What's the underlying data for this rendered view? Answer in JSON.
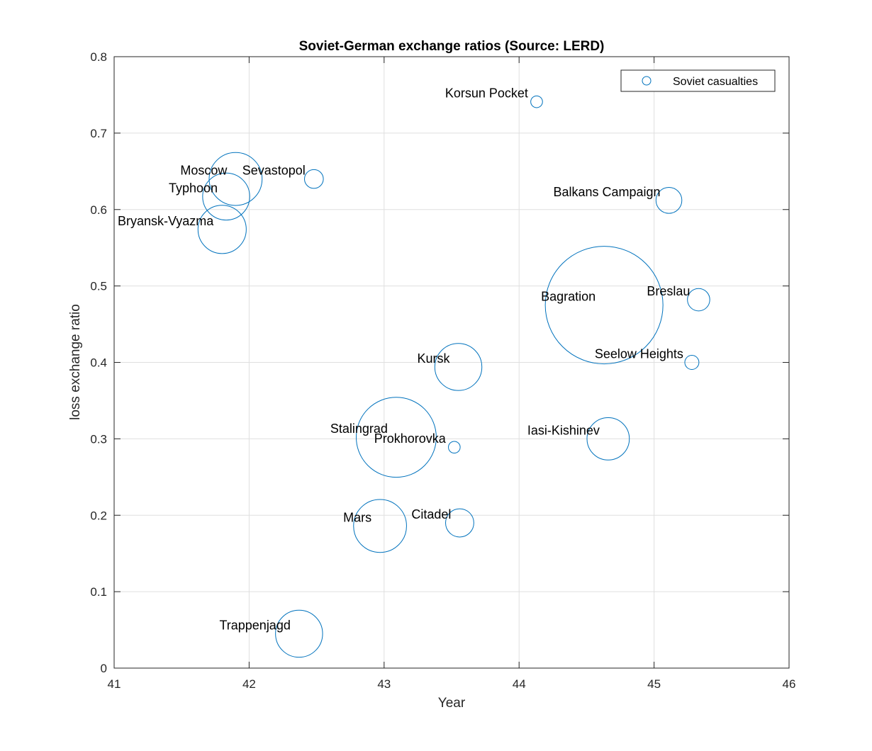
{
  "chart_data": {
    "type": "scatter",
    "title": "Soviet-German exchange ratios (Source: LERD)",
    "xlabel": "Year",
    "ylabel": "loss exchange ratio",
    "xlim": [
      41,
      46
    ],
    "ylim": [
      0,
      0.8
    ],
    "xticks": [
      41,
      42,
      43,
      44,
      45,
      46
    ],
    "yticks": [
      0,
      0.1,
      0.2,
      0.3,
      0.4,
      0.5,
      0.6,
      0.7,
      0.8
    ],
    "xtick_labels": [
      "41",
      "42",
      "43",
      "44",
      "45",
      "46"
    ],
    "ytick_labels": [
      "0",
      "0.1",
      "0.2",
      "0.3",
      "0.4",
      "0.5",
      "0.6",
      "0.7",
      "0.8"
    ],
    "grid": true,
    "legend": {
      "position": "top-right",
      "entries": [
        "Soviet casualties"
      ]
    },
    "marker_color": "#0072BD",
    "series": [
      {
        "name": "Soviet casualties",
        "points": [
          {
            "label": "Korsun Pocket",
            "x": 44.13,
            "y": 0.741,
            "size_rel": 0.1
          },
          {
            "label": "Moscow",
            "x": 41.9,
            "y": 0.64,
            "size_rel": 0.45
          },
          {
            "label": "Sevastopol",
            "x": 42.48,
            "y": 0.64,
            "size_rel": 0.16
          },
          {
            "label": "Typhoon",
            "x": 41.83,
            "y": 0.617,
            "size_rel": 0.4
          },
          {
            "label": "Bryansk-Vyazma",
            "x": 41.8,
            "y": 0.574,
            "size_rel": 0.41
          },
          {
            "label": "Balkans Campaign",
            "x": 45.11,
            "y": 0.612,
            "size_rel": 0.22
          },
          {
            "label": "Bagration",
            "x": 44.63,
            "y": 0.475,
            "size_rel": 1.0
          },
          {
            "label": "Breslau",
            "x": 45.33,
            "y": 0.482,
            "size_rel": 0.19
          },
          {
            "label": "Seelow Heights",
            "x": 45.28,
            "y": 0.4,
            "size_rel": 0.12
          },
          {
            "label": "Kursk",
            "x": 43.55,
            "y": 0.394,
            "size_rel": 0.4
          },
          {
            "label": "Stalingrad",
            "x": 43.09,
            "y": 0.302,
            "size_rel": 0.68
          },
          {
            "label": "Prokhorovka",
            "x": 43.52,
            "y": 0.289,
            "size_rel": 0.1
          },
          {
            "label": "Iasi-Kishinev",
            "x": 44.66,
            "y": 0.3,
            "size_rel": 0.36
          },
          {
            "label": "Mars",
            "x": 42.97,
            "y": 0.186,
            "size_rel": 0.45
          },
          {
            "label": "Citadel",
            "x": 43.56,
            "y": 0.19,
            "size_rel": 0.24
          },
          {
            "label": "Trappenjagd",
            "x": 42.37,
            "y": 0.045,
            "size_rel": 0.4
          }
        ]
      }
    ]
  }
}
